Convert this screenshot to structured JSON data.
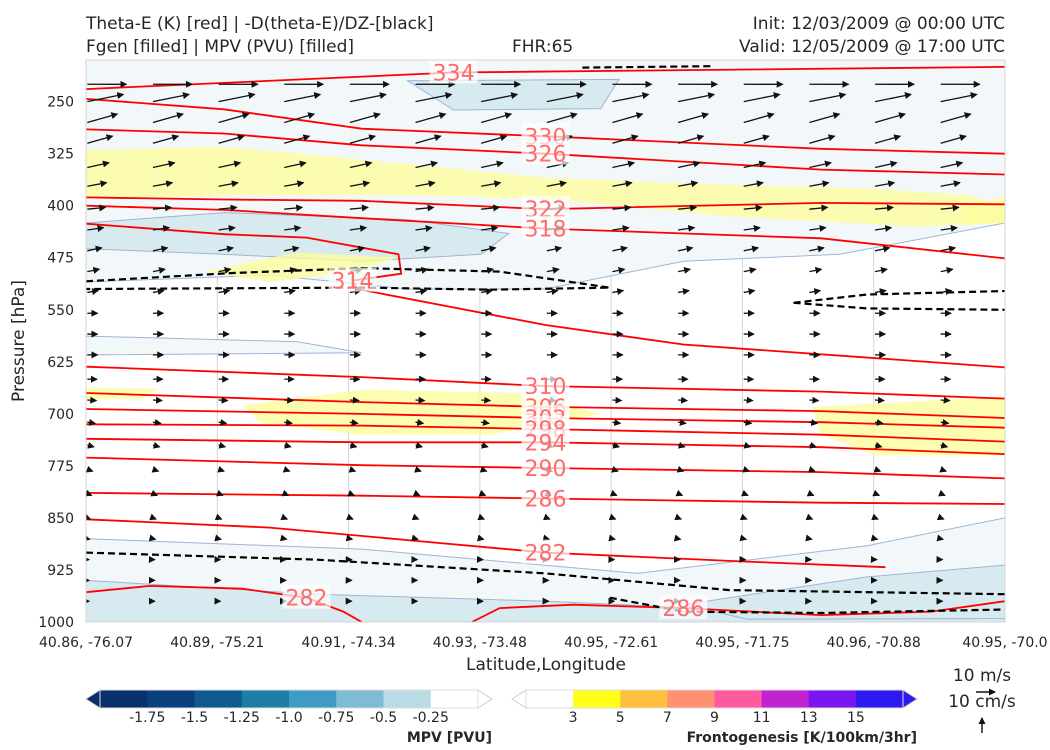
{
  "header": {
    "title_line1": "Theta-E (K) [red] | -D(theta-E)/DZ-[black]",
    "title_line2": "Fgen [filled] | MPV (PVU) [filled]",
    "fhr": "FHR:65",
    "init": "Init: 12/03/2009 @ 00:00 UTC",
    "valid": "Valid: 12/05/2009 @ 17:00 UTC"
  },
  "chart_data": {
    "type": "cross-section",
    "xlabel": "Latitude,Longitude",
    "ylabel": "Pressure [hPa]",
    "x_ticks": [
      "40.86, -76.07",
      "40.89, -75.21",
      "40.91, -74.34",
      "40.93, -73.48",
      "40.95, -72.61",
      "40.95, -71.75",
      "40.96, -70.88",
      "40.95, -70.0"
    ],
    "y_ticks": [
      250,
      325,
      400,
      475,
      550,
      625,
      700,
      775,
      850,
      925,
      1000
    ],
    "ylim": [
      1000,
      190
    ],
    "y_inverted": true,
    "grid": true,
    "theta_e_contours": [
      {
        "level": 334,
        "label": "334",
        "pts": [
          [
            0,
            232
          ],
          [
            400,
            208
          ],
          [
            1000,
            200
          ]
        ]
      },
      {
        "level": 330,
        "label": "330",
        "pts": [
          [
            0,
            246
          ],
          [
            150,
            261
          ],
          [
            300,
            289
          ],
          [
            500,
            300
          ],
          [
            800,
            318
          ],
          [
            1000,
            325
          ]
        ]
      },
      {
        "level": 326,
        "label": "326",
        "pts": [
          [
            0,
            290
          ],
          [
            150,
            296
          ],
          [
            300,
            313
          ],
          [
            500,
            325
          ],
          [
            800,
            348
          ],
          [
            1000,
            355
          ]
        ]
      },
      {
        "level": 322,
        "label": "322",
        "pts": [
          [
            0,
            388
          ],
          [
            150,
            391
          ],
          [
            300,
            393
          ],
          [
            500,
            405
          ],
          [
            800,
            396
          ],
          [
            1000,
            398
          ]
        ]
      },
      {
        "level": 318,
        "label": "318",
        "pts": [
          [
            0,
            400
          ],
          [
            150,
            406
          ],
          [
            300,
            418
          ],
          [
            500,
            433
          ],
          [
            800,
            447
          ],
          [
            1000,
            476
          ]
        ]
      },
      {
        "level": 314,
        "label": "314",
        "pts": [
          [
            0,
            426
          ],
          [
            150,
            441
          ],
          [
            240,
            446
          ],
          [
            340,
            470
          ],
          [
            343,
            498
          ],
          [
            290,
            508
          ],
          [
            295,
            520
          ],
          [
            500,
            572
          ],
          [
            650,
            600
          ],
          [
            1000,
            633
          ]
        ]
      },
      {
        "level": 310,
        "label": "310",
        "pts": [
          [
            0,
            632
          ],
          [
            300,
            647
          ],
          [
            500,
            660
          ],
          [
            800,
            668
          ],
          [
            1000,
            678
          ]
        ]
      },
      {
        "level": 306,
        "label": "306",
        "pts": [
          [
            0,
            670
          ],
          [
            300,
            683
          ],
          [
            500,
            690
          ],
          [
            800,
            696
          ],
          [
            1000,
            706
          ]
        ]
      },
      {
        "level": 302,
        "label": "302",
        "pts": [
          [
            0,
            693
          ],
          [
            300,
            700
          ],
          [
            500,
            706
          ],
          [
            800,
            712
          ],
          [
            1000,
            720
          ]
        ]
      },
      {
        "level": 298,
        "label": "298",
        "pts": [
          [
            0,
            715
          ],
          [
            300,
            717
          ],
          [
            500,
            722
          ],
          [
            800,
            730
          ],
          [
            1000,
            740
          ]
        ]
      },
      {
        "level": 294,
        "label": "294",
        "pts": [
          [
            0,
            736
          ],
          [
            300,
            741
          ],
          [
            500,
            741
          ],
          [
            800,
            748
          ],
          [
            1000,
            758
          ]
        ]
      },
      {
        "level": 290,
        "label": "290",
        "pts": [
          [
            0,
            763
          ],
          [
            300,
            774
          ],
          [
            500,
            778
          ],
          [
            800,
            784
          ],
          [
            1000,
            793
          ]
        ]
      },
      {
        "level": 286,
        "label": "286",
        "pts": [
          [
            0,
            814
          ],
          [
            300,
            818
          ],
          [
            500,
            822
          ],
          [
            800,
            828
          ],
          [
            1000,
            830
          ]
        ]
      },
      {
        "level": 282,
        "label": "282",
        "pts": [
          [
            0,
            852
          ],
          [
            200,
            864
          ],
          [
            350,
            882
          ],
          [
            500,
            900
          ],
          [
            700,
            912
          ],
          [
            870,
            921
          ]
        ]
      },
      {
        "level": 282,
        "label": "282",
        "pts": [
          [
            0,
            957
          ],
          [
            70,
            948
          ],
          [
            170,
            952
          ],
          [
            240,
            965
          ],
          [
            280,
            985
          ],
          [
            300,
            1000
          ]
        ]
      },
      {
        "level": 286,
        "label": "286",
        "pts": [
          [
            420,
            1000
          ],
          [
            450,
            980
          ],
          [
            530,
            975
          ],
          [
            650,
            980
          ],
          [
            800,
            990
          ],
          [
            920,
            985
          ],
          [
            1000,
            970
          ]
        ]
      }
    ],
    "dthetae_dz_contours": [
      {
        "pts": [
          [
            540,
            201
          ],
          [
            680,
            199
          ]
        ]
      },
      {
        "pts": [
          [
            0,
            509
          ],
          [
            160,
            497
          ],
          [
            300,
            490
          ],
          [
            450,
            495
          ],
          [
            570,
            518
          ],
          [
            440,
            521
          ],
          [
            300,
            518
          ],
          [
            0,
            520
          ]
        ]
      },
      {
        "pts": [
          [
            770,
            540
          ],
          [
            850,
            528
          ],
          [
            1000,
            523
          ]
        ]
      },
      {
        "pts": [
          [
            770,
            540
          ],
          [
            850,
            548
          ],
          [
            1000,
            550
          ]
        ]
      },
      {
        "pts": [
          [
            0,
            900
          ],
          [
            250,
            910
          ],
          [
            500,
            930
          ],
          [
            700,
            954
          ],
          [
            1000,
            960
          ]
        ]
      },
      {
        "pts": [
          [
            570,
            965
          ],
          [
            650,
            985
          ],
          [
            800,
            987
          ],
          [
            1000,
            982
          ]
        ]
      }
    ],
    "frontogenesis_regions": [
      {
        "level": 3,
        "pts": [
          [
            0,
            320
          ],
          [
            150,
            315
          ],
          [
            350,
            340
          ],
          [
            500,
            360
          ],
          [
            700,
            370
          ],
          [
            850,
            375
          ],
          [
            960,
            385
          ],
          [
            1000,
            400
          ],
          [
            1000,
            425
          ],
          [
            900,
            430
          ],
          [
            700,
            415
          ],
          [
            500,
            390
          ],
          [
            350,
            385
          ],
          [
            150,
            385
          ],
          [
            0,
            390
          ]
        ]
      },
      {
        "level": 3,
        "pts": [
          [
            130,
            495
          ],
          [
            230,
            467
          ],
          [
            340,
            475
          ],
          [
            290,
            495
          ],
          [
            200,
            510
          ]
        ]
      },
      {
        "level": 3,
        "pts": [
          [
            170,
            688
          ],
          [
            300,
            665
          ],
          [
            470,
            670
          ],
          [
            560,
            700
          ],
          [
            440,
            730
          ],
          [
            300,
            730
          ],
          [
            190,
            713
          ]
        ]
      },
      {
        "level": 3,
        "pts": [
          [
            790,
            690
          ],
          [
            1000,
            675
          ],
          [
            1000,
            760
          ],
          [
            860,
            760
          ],
          [
            800,
            730
          ]
        ]
      },
      {
        "level": 3,
        "pts": [
          [
            0,
            662
          ],
          [
            80,
            664
          ],
          [
            60,
            678
          ],
          [
            0,
            680
          ]
        ]
      },
      {
        "level": 3,
        "pts": [
          [
            950,
            410
          ],
          [
            1000,
            385
          ],
          [
            1000,
            425
          ],
          [
            955,
            428
          ]
        ]
      }
    ],
    "mpv_regions": [
      {
        "level": -0.25,
        "pts": [
          [
            0,
            190
          ],
          [
            1000,
            190
          ],
          [
            1000,
            425
          ],
          [
            820,
            470
          ],
          [
            650,
            480
          ],
          [
            500,
            520
          ],
          [
            350,
            520
          ],
          [
            200,
            500
          ],
          [
            0,
            510
          ]
        ]
      },
      {
        "level": -0.25,
        "pts": [
          [
            0,
            880
          ],
          [
            300,
            895
          ],
          [
            600,
            930
          ],
          [
            850,
            890
          ],
          [
            1000,
            850
          ],
          [
            1000,
            1000
          ],
          [
            0,
            1000
          ]
        ]
      },
      {
        "level": -0.25,
        "pts": [
          [
            0,
            588
          ],
          [
            230,
            596
          ],
          [
            300,
            612
          ],
          [
            0,
            615
          ]
        ]
      },
      {
        "level": -0.5,
        "pts": [
          [
            0,
            425
          ],
          [
            150,
            410
          ],
          [
            350,
            420
          ],
          [
            460,
            440
          ],
          [
            430,
            470
          ],
          [
            300,
            480
          ],
          [
            150,
            470
          ],
          [
            0,
            462
          ]
        ]
      },
      {
        "level": -0.5,
        "pts": [
          [
            0,
            940
          ],
          [
            250,
            960
          ],
          [
            500,
            970
          ],
          [
            750,
            985
          ],
          [
            1000,
            985
          ],
          [
            1000,
            1000
          ],
          [
            0,
            1000
          ]
        ]
      },
      {
        "level": -0.5,
        "pts": [
          [
            650,
            975
          ],
          [
            850,
            935
          ],
          [
            1000,
            918
          ],
          [
            1000,
            995
          ],
          [
            720,
            996
          ]
        ]
      },
      {
        "level": -0.5,
        "pts": [
          [
            350,
            220
          ],
          [
            580,
            218
          ],
          [
            560,
            260
          ],
          [
            400,
            262
          ]
        ]
      }
    ],
    "wind_vectors": {
      "pressures": [
        225,
        250,
        280,
        310,
        345,
        372,
        405,
        435,
        465,
        495,
        525,
        555,
        585,
        615,
        650,
        680,
        712,
        745,
        780,
        815,
        850,
        880,
        910,
        940,
        970
      ],
      "dx": [
        0.65,
        0.6,
        0.5,
        0.42,
        0.36,
        0.32,
        0.3,
        0.27,
        0.24,
        0.2,
        0.18,
        0.17,
        0.17,
        0.17,
        0.16,
        0.15,
        0.13,
        0.11,
        0.09,
        0.07,
        0.05,
        0.04,
        0.03,
        0.03,
        0.03
      ],
      "dy": [
        0.0,
        0.12,
        0.14,
        0.12,
        0.08,
        0.06,
        0.03,
        0.04,
        0.05,
        0.04,
        0.03,
        0.0,
        0.0,
        0.0,
        0.0,
        -0.01,
        -0.02,
        -0.03,
        -0.03,
        -0.03,
        -0.02,
        -0.01,
        0.0,
        0.0,
        0.0
      ]
    },
    "mpv_colorbar": {
      "label": "MPV [PVU]",
      "ticks": [
        "-1.75",
        "-1.5",
        "-1.25",
        "-1.0",
        "-0.75",
        "-0.5",
        "-0.25"
      ],
      "colors": [
        "#08306b",
        "#0b3e7c",
        "#105a8e",
        "#1d7da6",
        "#3f9bc3",
        "#7fbbd4",
        "#b9dbe4",
        "#ffffff"
      ]
    },
    "fgen_colorbar": {
      "label": "Frontogenesis [K/100km/3hr]",
      "ticks": [
        "3",
        "5",
        "7",
        "9",
        "11",
        "13",
        "15"
      ],
      "colors": [
        "#ffffff",
        "#ffff1a",
        "#ffc040",
        "#ff9070",
        "#ff5aa0",
        "#c024d0",
        "#7a17f0",
        "#2e1af0"
      ]
    },
    "reference_vectors": {
      "horizontal_label": "10 m/s",
      "vertical_label": "10 cm/s"
    },
    "colors": {
      "theta_e": "#ff0000",
      "contour_label": "#ff6b6b",
      "dthetae": "#000000",
      "mpv_light": "#f2f8f9",
      "mpv_mid": "#d7eaf0",
      "fgen_light": "#fdfd9e",
      "wind_arrow": "#111111",
      "grid": "#d4d4d4",
      "contour_outline": "#9fb4d6"
    }
  }
}
